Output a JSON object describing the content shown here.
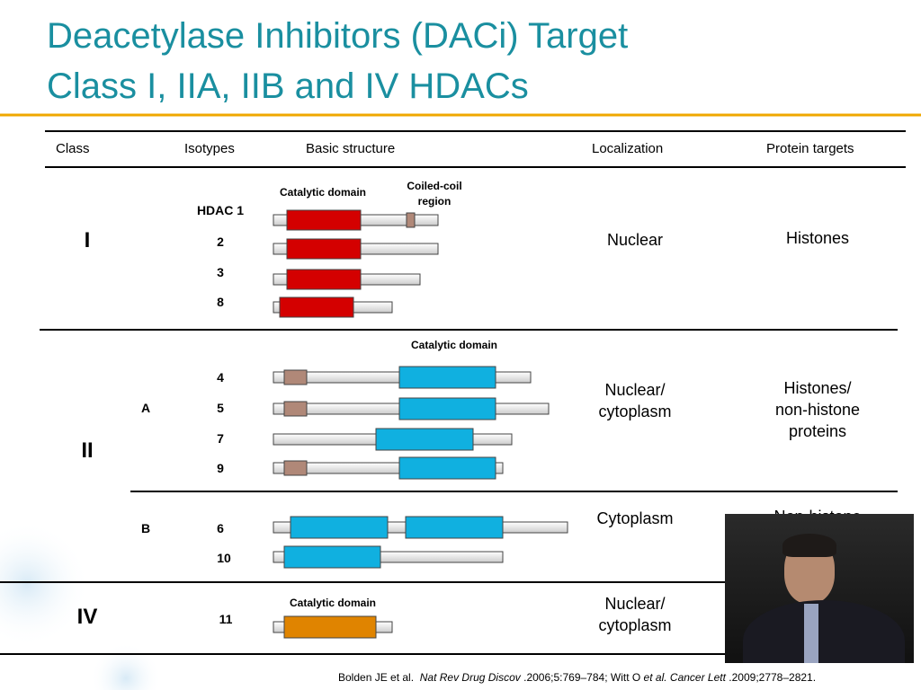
{
  "title": [
    "Deacetylase Inhibitors (DACi) Target",
    "Class I, IIA, IIB and IV HDACs"
  ],
  "table": {
    "headers": [
      "Class",
      "Isotypes",
      "Basic structure",
      "Localization",
      "Protein targets"
    ],
    "annotations": {
      "class_i_domain": "Catalytic domain",
      "coiled_coil": [
        "Coiled-coil",
        "region"
      ],
      "class_ii_domain": "Catalytic domain",
      "class_iv_domain": "Catalytic domain"
    },
    "rows": [
      {
        "class": "I",
        "isotypes": [
          "HDAC 1",
          "2",
          "3",
          "8"
        ],
        "localization": [
          "Nuclear"
        ],
        "targets": [
          "Histones"
        ]
      },
      {
        "class": "II",
        "subclasses": [
          {
            "name": "A",
            "isotypes": [
              "4",
              "5",
              "7",
              "9"
            ],
            "localization": [
              "Nuclear/",
              "cytoplasm"
            ],
            "targets": [
              "Histones/",
              "non-histone",
              "proteins"
            ]
          },
          {
            "name": "B",
            "isotypes": [
              "6",
              "10"
            ],
            "localization": [
              "Cytoplasm"
            ],
            "targets": [
              "Non-histone"
            ]
          }
        ]
      },
      {
        "class": "IV",
        "isotypes": [
          "11"
        ],
        "localization": [
          "Nuclear/",
          "cytoplasm"
        ]
      }
    ]
  },
  "citation": [
    "Bolden JE et al.",
    "Nat Rev Drug Discov",
    ".2006;5:769–784; Witt O",
    "et al.",
    "Cancer Lett",
    ".2009;2778–2821."
  ]
}
